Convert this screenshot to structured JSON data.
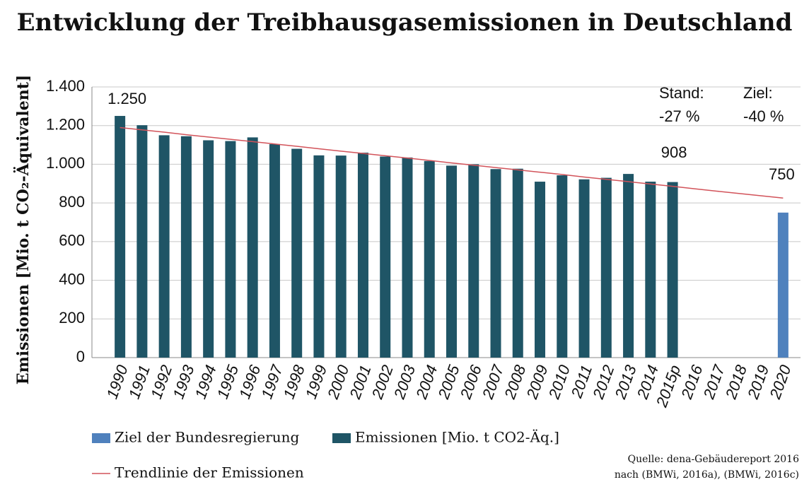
{
  "chart_data": {
    "type": "bar",
    "title": "Entwicklung der Treibhausgasemissionen in Deutschland",
    "y_label": "Emissionen [Mio. t CO₂-Äquivalent]",
    "categories": [
      "1990",
      "1991",
      "1992",
      "1993",
      "1994",
      "1995",
      "1996",
      "1997",
      "1998",
      "1999",
      "2000",
      "2001",
      "2002",
      "2003",
      "2004",
      "2005",
      "2006",
      "2007",
      "2008",
      "2009",
      "2010",
      "2011",
      "2012",
      "2013",
      "2014",
      "2015p",
      "2016",
      "2017",
      "2018",
      "2019",
      "2020"
    ],
    "series": [
      {
        "name": "Ziel der Bundesregierung",
        "color": "#4f81bd",
        "values": [
          null,
          null,
          null,
          null,
          null,
          null,
          null,
          null,
          null,
          null,
          null,
          null,
          null,
          null,
          null,
          null,
          null,
          null,
          null,
          null,
          null,
          null,
          null,
          null,
          null,
          null,
          null,
          null,
          null,
          null,
          750
        ]
      },
      {
        "name": "Emissionen [Mio. t CO2-Äq.]",
        "color": "#1f5566",
        "values": [
          1250,
          1202,
          1150,
          1145,
          1124,
          1120,
          1139,
          1104,
          1080,
          1046,
          1045,
          1060,
          1040,
          1035,
          1017,
          993,
          1000,
          975,
          977,
          910,
          943,
          922,
          930,
          950,
          910,
          908,
          null,
          null,
          null,
          null,
          null
        ],
        "value_labels": [
          "1.250",
          null,
          null,
          null,
          null,
          null,
          null,
          null,
          null,
          null,
          null,
          null,
          null,
          null,
          null,
          null,
          null,
          null,
          null,
          null,
          null,
          null,
          null,
          null,
          null,
          null,
          null,
          null,
          null,
          null,
          null
        ]
      },
      {
        "name": "Trendlinie der Emissionen",
        "color": "#d2535a",
        "type": "line",
        "values": [
          1190,
          1178,
          1166,
          1153,
          1141,
          1129,
          1117,
          1105,
          1093,
          1080,
          1068,
          1056,
          1044,
          1032,
          1020,
          1007,
          995,
          983,
          971,
          959,
          947,
          934,
          922,
          910,
          898,
          886,
          873,
          861,
          849,
          837,
          825
        ]
      }
    ],
    "ylim": [
      0,
      1400
    ],
    "yticks": [
      0,
      200,
      400,
      600,
      800,
      {
        "value": 1000,
        "label": "1.000"
      },
      {
        "value": 1200,
        "label": "1.200"
      },
      {
        "value": 1400,
        "label": "1.400"
      }
    ],
    "grid": true,
    "annotations": [
      "Stand:",
      "-27 %",
      "Ziel:",
      "-40 %"
    ],
    "source": [
      "Quelle: dena-Gebäudereport 2016",
      "nach (BMWi, 2016a), (BMWi, 2016c)"
    ]
  }
}
